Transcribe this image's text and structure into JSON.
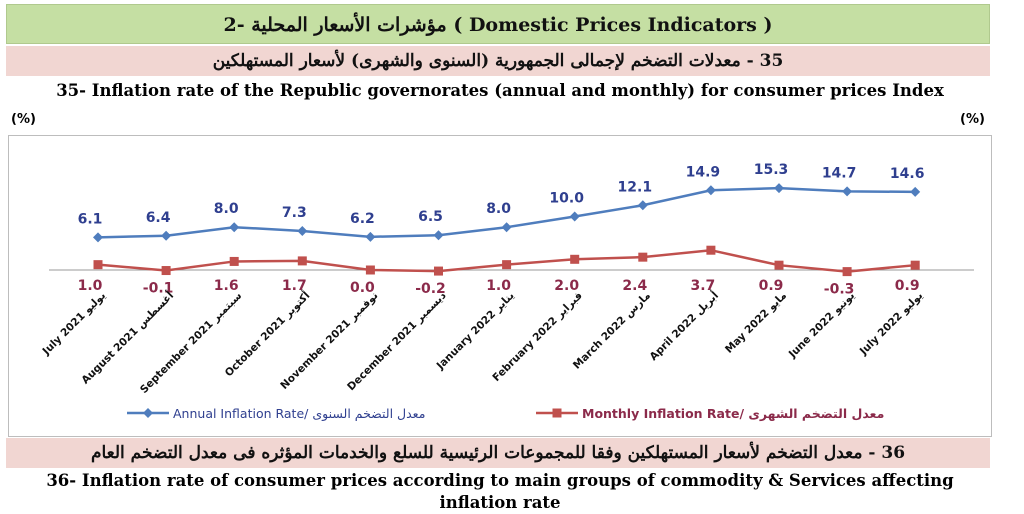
{
  "header": {
    "section_title": "2- مؤشرات الأسعار المحلية  ( Domestic Prices Indicators )",
    "subtitle35_ar": "35 - معدلات التضخم لإجمالى الجمهورية (السنوى والشهرى) لأسعار المستهلكين",
    "title35_en": "35- Inflation rate of  the Republic governorates (annual and monthly) for consumer prices Index"
  },
  "units": {
    "left": "(%)",
    "right": "(%)"
  },
  "chart_data": {
    "type": "line",
    "categories": [
      "July 2021 يوليو",
      "August 2021 أغسطس",
      "September 2021 سبتمبر",
      "October 2021 أكتوبر",
      "November 2021 نوفمبر",
      "December 2021 ديسمبر",
      "January 2022 يناير",
      "February 2022 فبراير",
      "March 2022 مارس",
      "April 2022 أبريل",
      "May 2022 مايو",
      "June 2022 يونيو",
      "July 2022 يوليو"
    ],
    "series": [
      {
        "name": "Annual Inflation Rate/ معدل التضخم السنوى",
        "color": "#4f7dbd",
        "values": [
          6.1,
          6.4,
          8.0,
          7.3,
          6.2,
          6.5,
          8.0,
          10.0,
          12.1,
          14.9,
          15.3,
          14.7,
          14.6
        ],
        "labels": [
          "6.1",
          "6.4",
          "8.0",
          "7.3",
          "6.2",
          "6.5",
          "8.0",
          "10.0",
          "12.1",
          "14.9",
          "15.3",
          "14.7",
          "14.6"
        ]
      },
      {
        "name": "Monthly Inflation Rate/ معدل التضخم الشهرى",
        "color": "#c0504d",
        "values": [
          1.0,
          -0.1,
          1.6,
          1.7,
          0.0,
          -0.2,
          1.0,
          2.0,
          2.4,
          3.7,
          0.9,
          -0.3,
          0.9
        ],
        "labels": [
          "1.0",
          "-0.1",
          "1.6",
          "1.7",
          "0.0",
          "-0.2",
          "1.0",
          "2.0",
          "2.4",
          "3.7",
          "0.9",
          "-0.3",
          "0.9"
        ]
      }
    ],
    "ylabel_left": "(%)",
    "ylabel_right": "(%)",
    "ylim": [
      -1,
      22
    ],
    "grid": false,
    "legend": "bottom",
    "label_colors": {
      "annual": "#2f3f8f",
      "monthly": "#8b2a4a"
    }
  },
  "footer": {
    "subtitle36_ar": "36 - معدل التضخم لأسعار المستهلكين وفقا للمجموعات الرئيسية للسلع والخدمات المؤثره فى معدل التضخم العام",
    "title36_en_line1": "36- Inflation rate of consumer prices according to main groups of commodity & Services affecting",
    "title36_en_line2": "inflation rate"
  }
}
